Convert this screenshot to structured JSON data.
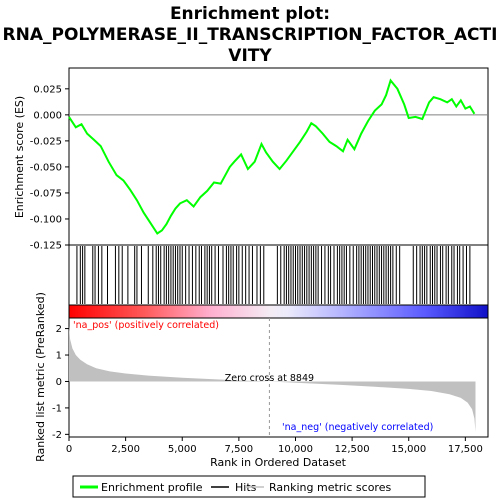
{
  "chart_data": {
    "type": "line",
    "title_line1": "Enrichment plot:",
    "title_line2": "RNA_POLYMERASE_II_TRANSCRIPTION_FACTOR_ACTI",
    "title_line3": "VITY",
    "top_ylabel": "Enrichment score (ES)",
    "bottom_ylabel": "Ranked list metric (PreRanked)",
    "xlabel": "Rank in Ordered Dataset",
    "xlim": [
      0,
      18500
    ],
    "x_ticks": [
      0,
      2500,
      5000,
      7500,
      10000,
      12500,
      15000,
      17500
    ],
    "x_tick_labels": [
      "0",
      "2,500",
      "5,000",
      "7,500",
      "10,000",
      "12,500",
      "15,000",
      "17,500"
    ],
    "es_ylim": [
      -0.125,
      0.045
    ],
    "es_ticks": [
      0.025,
      0.0,
      -0.025,
      -0.05,
      -0.075,
      -0.1,
      -0.125
    ],
    "es_tick_labels": [
      "0.025",
      "0.000",
      "-0.025",
      "-0.050",
      "-0.075",
      "-0.100",
      "-0.125"
    ],
    "metric_ylim": [
      -2.1,
      2.4
    ],
    "metric_ticks": [
      2,
      1,
      0,
      -1,
      -2
    ],
    "metric_tick_labels": [
      "2",
      "1",
      "0",
      "-1",
      "-2"
    ],
    "es_profile": {
      "x": [
        0,
        300,
        550,
        800,
        1100,
        1400,
        1750,
        2100,
        2400,
        2700,
        3000,
        3300,
        3600,
        3900,
        4100,
        4300,
        4500,
        4700,
        4900,
        5200,
        5500,
        5800,
        6100,
        6400,
        6700,
        6900,
        7100,
        7300,
        7600,
        7900,
        8200,
        8500,
        8700,
        9000,
        9300,
        9600,
        9900,
        10200,
        10500,
        10700,
        10900,
        11200,
        11500,
        11800,
        12100,
        12300,
        12600,
        12900,
        13200,
        13500,
        13800,
        14000,
        14200,
        14500,
        14800,
        15000,
        15300,
        15600,
        15900,
        16100,
        16400,
        16700,
        16900,
        17100,
        17300,
        17500,
        17700,
        17900
      ],
      "y": [
        -0.002,
        -0.012,
        -0.009,
        -0.018,
        -0.024,
        -0.03,
        -0.045,
        -0.058,
        -0.063,
        -0.072,
        -0.082,
        -0.094,
        -0.104,
        -0.114,
        -0.111,
        -0.105,
        -0.097,
        -0.09,
        -0.085,
        -0.082,
        -0.088,
        -0.079,
        -0.073,
        -0.065,
        -0.066,
        -0.058,
        -0.05,
        -0.045,
        -0.038,
        -0.052,
        -0.045,
        -0.028,
        -0.036,
        -0.045,
        -0.052,
        -0.044,
        -0.035,
        -0.026,
        -0.016,
        -0.008,
        -0.011,
        -0.018,
        -0.026,
        -0.03,
        -0.035,
        -0.024,
        -0.033,
        -0.018,
        -0.006,
        0.004,
        0.01,
        0.019,
        0.033,
        0.025,
        0.01,
        -0.003,
        -0.002,
        -0.004,
        0.012,
        0.017,
        0.015,
        0.012,
        0.015,
        0.008,
        0.014,
        0.006,
        0.008,
        0.001
      ]
    },
    "hits": [
      350,
      500,
      600,
      700,
      1050,
      1150,
      1300,
      1450,
      1700,
      2050,
      2200,
      2350,
      2600,
      2900,
      3000,
      3200,
      3500,
      3700,
      3850,
      3950,
      4050,
      4200,
      4300,
      4400,
      4500,
      4600,
      4700,
      4800,
      4900,
      5000,
      5150,
      5300,
      5450,
      5600,
      5750,
      5850,
      6000,
      6100,
      6200,
      6300,
      6450,
      6600,
      6800,
      6950,
      7050,
      7150,
      7250,
      7400,
      7500,
      7650,
      7800,
      7950,
      8100,
      8300,
      8450,
      8600,
      9200,
      9350,
      9500,
      9600,
      9700,
      9800,
      9900,
      10000,
      10100,
      10200,
      10300,
      10400,
      10500,
      10600,
      10700,
      10800,
      10900,
      11000,
      11150,
      11300,
      11450,
      11550,
      11700,
      11850,
      11950,
      12050,
      12150,
      12250,
      12400,
      12550,
      12700,
      12800,
      12900,
      13000,
      13100,
      13200,
      13300,
      13400,
      13500,
      13600,
      13700,
      13800,
      13900,
      14000,
      14100,
      14200,
      14300,
      14450,
      14600,
      15200,
      15350,
      15500,
      15600,
      15700,
      15800,
      15950,
      16050,
      16150,
      16250,
      16400,
      16500,
      16650,
      16750,
      16900,
      17000,
      17150,
      17250,
      17400,
      17550,
      17700
    ],
    "metric_profile": {
      "x": [
        0,
        50,
        150,
        300,
        500,
        800,
        1200,
        1800,
        2500,
        3500,
        5000,
        7000,
        8849,
        10000,
        12000,
        13500,
        15000,
        16000,
        16800,
        17300,
        17600,
        17800,
        17900,
        17950
      ],
      "y": [
        2.1,
        1.6,
        1.25,
        1.0,
        0.82,
        0.65,
        0.5,
        0.38,
        0.3,
        0.22,
        0.14,
        0.06,
        0.0,
        -0.05,
        -0.13,
        -0.2,
        -0.28,
        -0.36,
        -0.48,
        -0.62,
        -0.8,
        -1.05,
        -1.4,
        -1.9
      ]
    },
    "zero_cross_x": 8849,
    "zero_cross_label": "Zero cross at 8849",
    "pos_label": "'na_pos' (positively correlated)",
    "neg_label": "'na_neg' (negatively correlated)",
    "legend": [
      {
        "name": "Enrichment profile",
        "color": "#00ff00"
      },
      {
        "name": "Hits",
        "color": "#000000"
      },
      {
        "name": "Ranking metric scores",
        "color": "#c0c0c0"
      }
    ],
    "legend_placement": "bottom",
    "colors": {
      "es_line": "#00ff00",
      "hit": "#000000",
      "metric_fill": "#c0c0c0",
      "pos_text": "#ff0000",
      "neg_text": "#0000ff"
    }
  }
}
